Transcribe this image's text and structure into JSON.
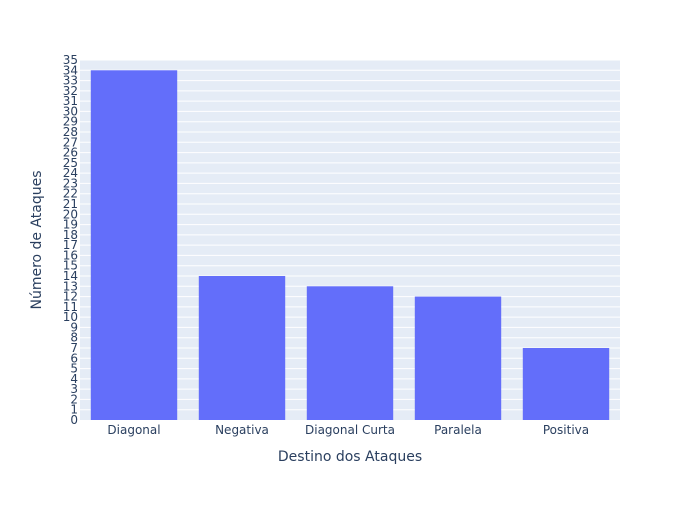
{
  "chart_data": {
    "type": "bar",
    "categories": [
      "Diagonal",
      "Negativa",
      "Diagonal Curta",
      "Paralela",
      "Positiva"
    ],
    "values": [
      34,
      14,
      13,
      12,
      7
    ],
    "title": "",
    "xlabel": "Destino dos Ataques",
    "ylabel": "Número de Ataques",
    "ylim": [
      0,
      35
    ],
    "ytick_step": 1,
    "grid": true,
    "colors": {
      "bar": "#636efa",
      "plot_background": "#e5ecf6",
      "grid": "#ffffff",
      "text": "#2a3f5f"
    }
  }
}
